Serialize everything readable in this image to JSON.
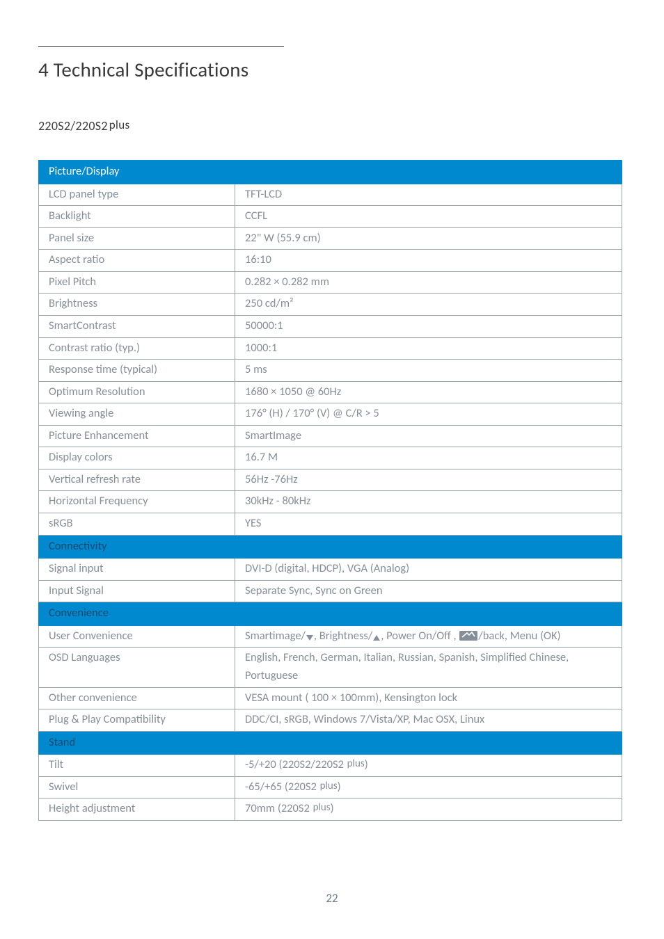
{
  "page": {
    "heading": "4  Technical Specifications",
    "subheading_model": "220S2/220S2",
    "subheading_plus": "plus",
    "page_number": "22"
  },
  "colors": {
    "header_bg": "#0089cf",
    "header_fg": "#ffffff",
    "header_dark_fg": "#154a6e",
    "cell_border": "#9aa4ad",
    "text": "#858f99",
    "heading": "#3a3a3a"
  },
  "sections": [
    {
      "title": "Picture/Display",
      "title_variant": "light",
      "rows": [
        {
          "key": "LCD panel type",
          "val": "TFT-LCD"
        },
        {
          "key": "Backlight",
          "val": "CCFL"
        },
        {
          "key": "Panel size",
          "val": "22\" W (55.9 cm)"
        },
        {
          "key": "Aspect ratio",
          "val": "16:10"
        },
        {
          "key": "Pixel Pitch",
          "val": "0.282 × 0.282 mm"
        },
        {
          "key": "Brightness",
          "val": "250 cd/m²"
        },
        {
          "key": "SmartContrast",
          "val": "50000:1"
        },
        {
          "key": "Contrast ratio (typ.)",
          "val": "1000:1"
        },
        {
          "key": "Response time (typical)",
          "val": "5 ms"
        },
        {
          "key": "Optimum Resolution",
          "val": "1680 × 1050 @ 60Hz"
        },
        {
          "key": "Viewing angle",
          "val": "176° (H) / 170° (V) @ C/R > 5"
        },
        {
          "key": "Picture Enhancement",
          "val": "SmartImage"
        },
        {
          "key": "Display colors",
          "val": "16.7 M"
        },
        {
          "key": "Vertical refresh rate",
          "val": "56Hz -76Hz"
        },
        {
          "key": "Horizontal Frequency",
          "val": "30kHz - 80kHz"
        },
        {
          "key": "sRGB",
          "val": "YES"
        }
      ]
    },
    {
      "title": "Connectivity",
      "title_variant": "dark",
      "rows": [
        {
          "key": "Signal input",
          "val": "DVI-D (digital, HDCP), VGA (Analog)"
        },
        {
          "key": "Input Signal",
          "val": "Separate Sync, Sync on Green"
        }
      ]
    },
    {
      "title": "Convenience",
      "title_variant": "dark",
      "rows": [
        {
          "key": "User Convenience",
          "val_special": "user_convenience",
          "parts": {
            "p1": "Smartimage/",
            "p2": ", Brightness/",
            "p3": ", Power On/Off ,  ",
            "p4": "/back, Menu (OK)"
          }
        },
        {
          "key": "OSD Languages",
          "val": "English, French, German, Italian, Russian, Spanish, Simplified Chinese, Portuguese"
        },
        {
          "key": "Other convenience",
          "val": "VESA mount ( 100 × 100mm), Kensington lock"
        },
        {
          "key": "Plug & Play Compatibility",
          "val": "DDC/CI, sRGB, Windows 7/Vista/XP, Mac OSX, Linux"
        }
      ]
    },
    {
      "title": "Stand",
      "title_variant": "dark",
      "rows": [
        {
          "key": "Tilt",
          "val_plus": {
            "pre": "-5/+20 (220S2/220S2 ",
            "plus": "plus",
            "post": ")"
          }
        },
        {
          "key": "Swivel",
          "val_plus": {
            "pre": "-65/+65 (220S2 ",
            "plus": "plus",
            "post": ")"
          }
        },
        {
          "key": "Height adjustment",
          "val_plus": {
            "pre": "70mm (220S2 ",
            "plus": "plus",
            "post": ")"
          }
        }
      ]
    }
  ]
}
